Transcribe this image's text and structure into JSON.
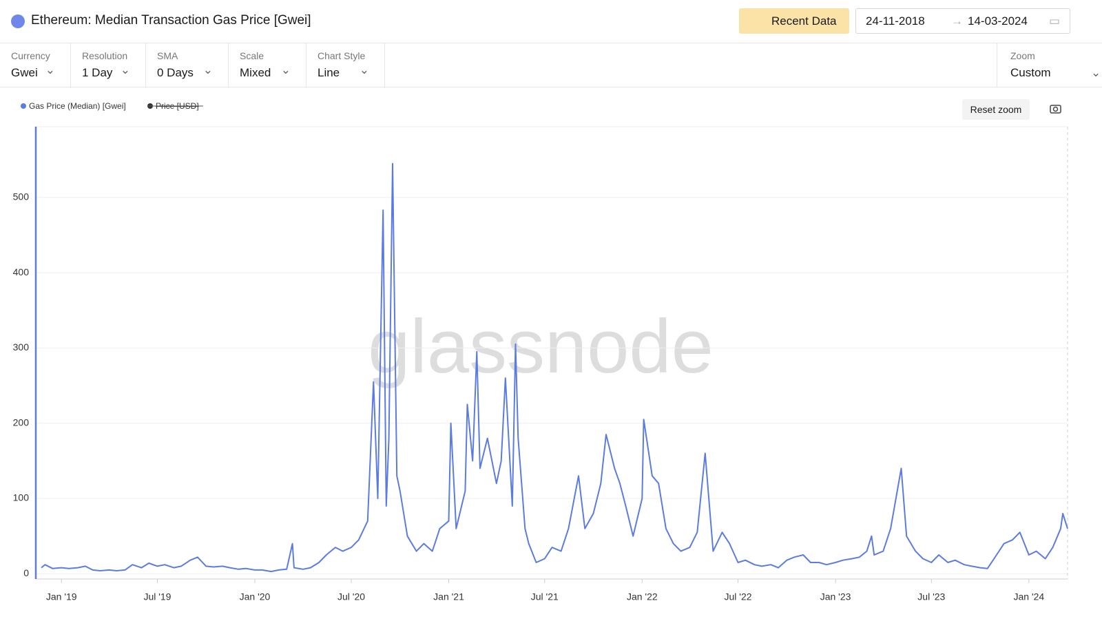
{
  "header": {
    "title": "Ethereum: Median Transaction Gas Price [Gwei]",
    "recent_button": "Recent Data",
    "date_from": "24-11-2018",
    "date_to": "14-03-2024"
  },
  "controls": [
    {
      "label": "Currency",
      "value": "Gwei"
    },
    {
      "label": "Resolution",
      "value": "1 Day"
    },
    {
      "label": "SMA",
      "value": "0 Days"
    },
    {
      "label": "Scale",
      "value": "Mixed"
    },
    {
      "label": "Chart Style",
      "value": "Line"
    }
  ],
  "zoom": {
    "label": "Zoom",
    "value": "Custom"
  },
  "reset_zoom": "Reset zoom",
  "watermark": "glassnode",
  "chart_data": {
    "type": "line",
    "x": [
      "2018-11-24",
      "2018-12-01",
      "2018-12-15",
      "2019-01-01",
      "2019-01-15",
      "2019-02-01",
      "2019-02-15",
      "2019-03-01",
      "2019-03-15",
      "2019-04-01",
      "2019-04-15",
      "2019-05-01",
      "2019-05-15",
      "2019-06-01",
      "2019-06-15",
      "2019-07-01",
      "2019-07-15",
      "2019-08-01",
      "2019-08-15",
      "2019-09-01",
      "2019-09-15",
      "2019-10-01",
      "2019-10-15",
      "2019-11-01",
      "2019-11-15",
      "2019-12-01",
      "2019-12-15",
      "2020-01-01",
      "2020-01-15",
      "2020-02-01",
      "2020-02-15",
      "2020-03-01",
      "2020-03-12",
      "2020-03-15",
      "2020-04-01",
      "2020-04-15",
      "2020-05-01",
      "2020-05-15",
      "2020-06-01",
      "2020-06-15",
      "2020-07-01",
      "2020-07-15",
      "2020-08-01",
      "2020-08-12",
      "2020-08-20",
      "2020-08-30",
      "2020-09-05",
      "2020-09-10",
      "2020-09-17",
      "2020-09-25",
      "2020-10-01",
      "2020-10-15",
      "2020-11-01",
      "2020-11-15",
      "2020-12-01",
      "2020-12-15",
      "2021-01-01",
      "2021-01-05",
      "2021-01-15",
      "2021-02-01",
      "2021-02-05",
      "2021-02-15",
      "2021-02-23",
      "2021-03-01",
      "2021-03-15",
      "2021-04-01",
      "2021-04-10",
      "2021-04-18",
      "2021-05-01",
      "2021-05-07",
      "2021-05-12",
      "2021-05-25",
      "2021-06-01",
      "2021-06-15",
      "2021-07-01",
      "2021-07-15",
      "2021-08-01",
      "2021-08-15",
      "2021-09-03",
      "2021-09-15",
      "2021-10-01",
      "2021-10-15",
      "2021-10-25",
      "2021-11-10",
      "2021-11-20",
      "2021-12-01",
      "2021-12-15",
      "2022-01-01",
      "2022-01-04",
      "2022-01-20",
      "2022-02-01",
      "2022-02-15",
      "2022-03-01",
      "2022-03-15",
      "2022-04-01",
      "2022-04-15",
      "2022-04-30",
      "2022-05-15",
      "2022-06-01",
      "2022-06-15",
      "2022-07-01",
      "2022-07-15",
      "2022-08-01",
      "2022-08-15",
      "2022-09-01",
      "2022-09-15",
      "2022-10-01",
      "2022-10-15",
      "2022-11-01",
      "2022-11-15",
      "2022-12-01",
      "2022-12-15",
      "2023-01-01",
      "2023-01-15",
      "2023-02-01",
      "2023-02-15",
      "2023-03-01",
      "2023-03-10",
      "2023-03-15",
      "2023-04-01",
      "2023-04-15",
      "2023-05-05",
      "2023-05-15",
      "2023-06-01",
      "2023-06-15",
      "2023-07-01",
      "2023-07-15",
      "2023-08-01",
      "2023-08-15",
      "2023-09-01",
      "2023-09-15",
      "2023-10-01",
      "2023-10-15",
      "2023-11-01",
      "2023-11-15",
      "2023-12-01",
      "2023-12-15",
      "2024-01-01",
      "2024-01-15",
      "2024-02-01",
      "2024-02-15",
      "2024-03-01",
      "2024-03-05",
      "2024-03-14"
    ],
    "series": [
      {
        "name": "Gas Price (Median) [Gwei]",
        "color": "#5b7be0",
        "values": [
          8,
          12,
          7,
          8,
          7,
          8,
          10,
          5,
          4,
          5,
          4,
          5,
          12,
          8,
          14,
          10,
          12,
          8,
          10,
          18,
          22,
          10,
          9,
          10,
          8,
          6,
          7,
          5,
          5,
          3,
          5,
          6,
          40,
          8,
          6,
          8,
          15,
          25,
          35,
          30,
          35,
          45,
          70,
          255,
          100,
          483,
          90,
          180,
          545,
          130,
          110,
          50,
          30,
          40,
          30,
          60,
          70,
          200,
          60,
          110,
          225,
          150,
          295,
          140,
          180,
          120,
          150,
          260,
          90,
          305,
          180,
          60,
          40,
          15,
          20,
          35,
          30,
          60,
          130,
          60,
          80,
          120,
          185,
          140,
          120,
          90,
          50,
          100,
          205,
          130,
          120,
          60,
          40,
          30,
          35,
          55,
          160,
          30,
          55,
          40,
          15,
          18,
          12,
          10,
          12,
          8,
          18,
          22,
          25,
          15,
          15,
          12,
          15,
          18,
          20,
          22,
          30,
          50,
          25,
          30,
          60,
          140,
          50,
          30,
          20,
          15,
          25,
          15,
          18,
          12,
          10,
          8,
          7,
          25,
          40,
          45,
          55,
          25,
          30,
          20,
          35,
          60,
          80,
          60
        ]
      }
    ],
    "hidden_series": [
      {
        "name": "Price [USD]",
        "color": "#333333"
      }
    ],
    "xlim": [
      "2018-11-24",
      "2024-03-14"
    ],
    "xticks": [
      {
        "value": "2019-01-01",
        "label": "Jan '19"
      },
      {
        "value": "2019-07-01",
        "label": "Jul '19"
      },
      {
        "value": "2020-01-01",
        "label": "Jan '20"
      },
      {
        "value": "2020-07-01",
        "label": "Jul '20"
      },
      {
        "value": "2021-01-01",
        "label": "Jan '21"
      },
      {
        "value": "2021-07-01",
        "label": "Jul '21"
      },
      {
        "value": "2022-01-01",
        "label": "Jan '22"
      },
      {
        "value": "2022-07-01",
        "label": "Jul '22"
      },
      {
        "value": "2023-01-01",
        "label": "Jan '23"
      },
      {
        "value": "2023-07-01",
        "label": "Jul '23"
      },
      {
        "value": "2024-01-01",
        "label": "Jan '24"
      }
    ],
    "ylim": [
      -7,
      594
    ],
    "yticks": [
      0,
      100,
      200,
      300,
      400,
      500
    ],
    "grid": true
  }
}
